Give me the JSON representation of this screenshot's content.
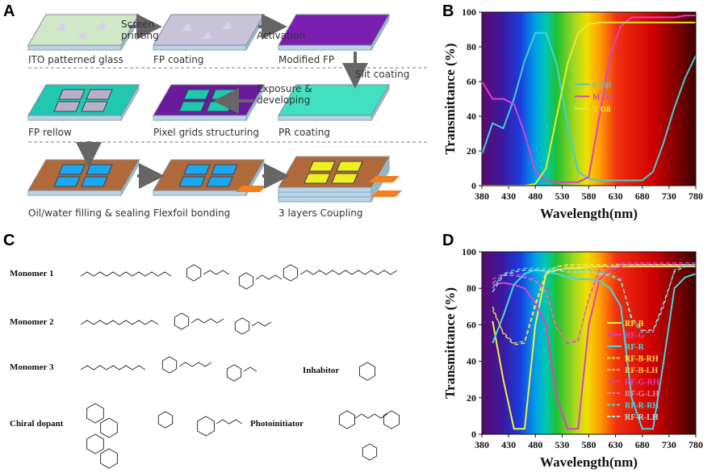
{
  "panels": [
    "A",
    "B",
    "C",
    "D"
  ],
  "diagram": {
    "steps": [
      "ITO patterned glass",
      "FP coating",
      "Modified FP",
      "FP rellow",
      "Pixel grids structuring",
      "PR coating",
      "Oil/water filling & sealing",
      "Flexfoil bonding",
      "3 layers Coupling"
    ],
    "arrows": [
      [
        "Screen",
        "printing"
      ],
      [
        "Activation"
      ],
      [
        "Slit coating"
      ],
      [
        "Exposure &",
        "developing"
      ]
    ]
  },
  "chemicals": [
    "Monomer 1",
    "Monomer 2",
    "Monomer 3",
    "Inhabitor",
    "Chiral dopant",
    "Photoinitiator"
  ],
  "chart_data": [
    {
      "type": "line",
      "x_label": "Wavelength(nm)",
      "y_label": "Transmittance (%)",
      "xlim": [
        380,
        780
      ],
      "xticks": [
        380,
        430,
        480,
        530,
        580,
        630,
        680,
        730,
        780
      ],
      "ylim": [
        0,
        100
      ],
      "yticks": [
        0,
        20,
        40,
        60,
        80,
        100
      ],
      "legend": "center right",
      "x": [
        380,
        400,
        420,
        440,
        460,
        480,
        500,
        520,
        540,
        560,
        580,
        600,
        620,
        640,
        660,
        680,
        700,
        720,
        740,
        760,
        780
      ],
      "series": [
        {
          "name": "C Oil",
          "color": "#3fd0d8",
          "style": "solid",
          "values": [
            18,
            36,
            33,
            50,
            72,
            88,
            88,
            70,
            35,
            8,
            4,
            3,
            3,
            3,
            3,
            3,
            8,
            25,
            45,
            62,
            75
          ]
        },
        {
          "name": "M Oil",
          "color": "#e040c8",
          "style": "solid",
          "values": [
            60,
            50,
            50,
            47,
            30,
            8,
            3,
            2,
            2,
            2,
            5,
            40,
            75,
            92,
            97,
            97,
            97,
            97,
            97,
            98,
            98
          ]
        },
        {
          "name": "Y Oil",
          "color": "#e8e830",
          "style": "solid",
          "values": [
            0,
            0,
            0,
            0,
            0,
            1,
            10,
            40,
            70,
            88,
            93,
            94,
            94,
            94,
            94,
            94,
            94,
            94,
            94,
            94,
            94
          ]
        }
      ]
    },
    {
      "type": "line",
      "x_label": "Wavelength(nm)",
      "y_label": "Transmittance (%)",
      "xlim": [
        380,
        780
      ],
      "xticks": [
        380,
        430,
        480,
        530,
        580,
        630,
        680,
        730,
        780
      ],
      "ylim": [
        0,
        100
      ],
      "yticks": [
        0,
        20,
        40,
        60,
        80,
        100
      ],
      "legend": "lower right",
      "x": [
        380,
        400,
        420,
        440,
        460,
        480,
        500,
        520,
        540,
        560,
        580,
        600,
        620,
        640,
        660,
        680,
        700,
        720,
        740,
        760,
        780
      ],
      "series": [
        {
          "name": "RF-B",
          "color": "#f0f040",
          "style": "solid",
          "values": [
            null,
            62,
            30,
            3,
            3,
            60,
            88,
            90,
            91,
            91,
            92,
            92,
            92,
            92,
            92,
            92,
            92,
            92,
            92,
            92,
            92
          ]
        },
        {
          "name": "RF-G",
          "color": "#e040c0",
          "style": "solid",
          "values": [
            null,
            82,
            83,
            82,
            80,
            72,
            60,
            20,
            3,
            3,
            60,
            85,
            90,
            92,
            93,
            93,
            93,
            93,
            93,
            93,
            93
          ]
        },
        {
          "name": "RF-R",
          "color": "#40d8e0",
          "style": "solid",
          "values": [
            null,
            50,
            65,
            82,
            88,
            90,
            89,
            88,
            86,
            85,
            85,
            84,
            80,
            70,
            20,
            3,
            3,
            40,
            80,
            86,
            88
          ]
        },
        {
          "name": "RF-B-RH",
          "color": "#f0f040",
          "style": "dashed",
          "values": [
            null,
            70,
            55,
            49,
            50,
            70,
            88,
            92,
            93,
            93,
            93,
            93,
            93,
            93,
            93,
            93,
            93,
            93,
            93,
            93,
            93
          ]
        },
        {
          "name": "RF-B-LH",
          "color": "#f8d060",
          "style": "dashed",
          "values": [
            null,
            68,
            56,
            50,
            51,
            72,
            89,
            92,
            92,
            92,
            92,
            92,
            92,
            92,
            92,
            92,
            92,
            92,
            92,
            92,
            92
          ]
        },
        {
          "name": "RF-G-RH",
          "color": "#e040c0",
          "style": "dashed",
          "values": [
            null,
            85,
            88,
            88,
            87,
            85,
            80,
            60,
            50,
            51,
            75,
            90,
            93,
            94,
            94,
            94,
            94,
            94,
            94,
            94,
            94
          ]
        },
        {
          "name": "RF-G-LH",
          "color": "#f080b0",
          "style": "dashed",
          "values": [
            null,
            83,
            87,
            87,
            86,
            84,
            78,
            58,
            51,
            52,
            73,
            89,
            92,
            93,
            93,
            93,
            93,
            93,
            93,
            93,
            93
          ]
        },
        {
          "name": "RF-R-RH",
          "color": "#40d8e0",
          "style": "dashed",
          "values": [
            null,
            80,
            88,
            90,
            91,
            91,
            91,
            91,
            90,
            90,
            90,
            89,
            88,
            85,
            62,
            56,
            56,
            70,
            90,
            93,
            93
          ]
        },
        {
          "name": "RF-R-LH",
          "color": "#a0e8e8",
          "style": "dashed",
          "values": [
            null,
            78,
            87,
            89,
            90,
            90,
            90,
            90,
            89,
            89,
            89,
            88,
            87,
            84,
            64,
            57,
            57,
            72,
            89,
            92,
            92
          ]
        }
      ]
    }
  ]
}
